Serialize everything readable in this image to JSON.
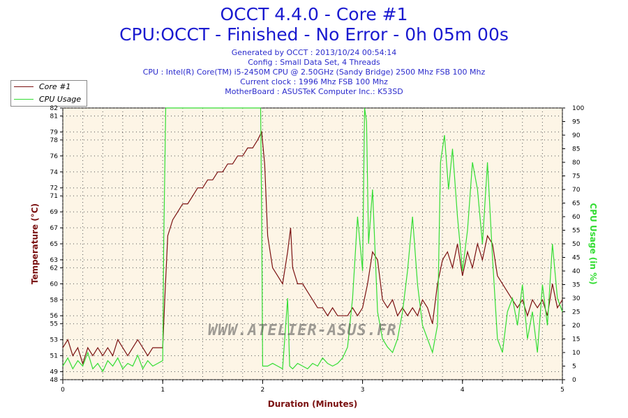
{
  "header": {
    "title": "OCCT 4.4.0 - Core #1",
    "subtitle": "CPU:OCCT - Finished - No Error - 0h 05m 00s",
    "info": [
      "Generated by OCCT : 2013/10/24 00:54:14",
      "Config : Small Data Set, 4 Threads",
      "CPU : Intel(R) Core(TM) i5-2450M CPU @ 2.50GHz (Sandy Bridge) 2500 Mhz FSB 100 Mhz",
      "Current clock : 1996 Mhz FSB 100 Mhz",
      "MotherBoard : ASUSTeK Computer Inc.: K53SD"
    ]
  },
  "watermark": "WWW.ATELIER-ASUS.FR",
  "colors": {
    "temperature": "#7a1010",
    "cpu_usage": "#33dd33",
    "plot_bg": "#fdf5e6",
    "title": "#1a1ad0"
  },
  "chart_data": {
    "type": "line",
    "xlabel": "Duration (Minutes)",
    "ylabel": "Temperature (°C)",
    "y2label": "CPU Usage (in %)",
    "xlim": [
      0,
      5
    ],
    "ylim": [
      48,
      82
    ],
    "y2lim": [
      0,
      100
    ],
    "x_ticks": [
      "0",
      "1",
      "2",
      "3",
      "4",
      "5"
    ],
    "y_ticks": [
      48,
      49,
      51,
      53,
      55,
      56,
      58,
      60,
      62,
      63,
      65,
      67,
      69,
      71,
      72,
      74,
      76,
      78,
      79,
      81,
      82
    ],
    "y2_ticks": [
      0,
      5,
      10,
      15,
      20,
      25,
      30,
      35,
      40,
      45,
      50,
      55,
      60,
      65,
      70,
      75,
      80,
      85,
      90,
      95,
      100
    ],
    "grid": "dotted",
    "legend": "top-left",
    "series": [
      {
        "name": "Core #1",
        "axis": "left",
        "x": [
          0,
          0.05,
          0.1,
          0.15,
          0.2,
          0.25,
          0.3,
          0.35,
          0.4,
          0.45,
          0.5,
          0.55,
          0.6,
          0.65,
          0.7,
          0.75,
          0.8,
          0.85,
          0.9,
          0.95,
          1.0,
          1.02,
          1.05,
          1.1,
          1.15,
          1.2,
          1.25,
          1.3,
          1.35,
          1.4,
          1.45,
          1.5,
          1.55,
          1.6,
          1.65,
          1.7,
          1.75,
          1.8,
          1.85,
          1.9,
          1.95,
          1.99,
          2.02,
          2.05,
          2.1,
          2.15,
          2.2,
          2.25,
          2.28,
          2.3,
          2.35,
          2.4,
          2.45,
          2.5,
          2.55,
          2.6,
          2.65,
          2.7,
          2.75,
          2.8,
          2.85,
          2.9,
          2.95,
          3.0,
          3.05,
          3.1,
          3.15,
          3.2,
          3.25,
          3.3,
          3.35,
          3.4,
          3.45,
          3.5,
          3.55,
          3.6,
          3.65,
          3.7,
          3.75,
          3.8,
          3.85,
          3.9,
          3.95,
          4.0,
          4.05,
          4.1,
          4.15,
          4.2,
          4.25,
          4.3,
          4.35,
          4.4,
          4.45,
          4.5,
          4.55,
          4.6,
          4.65,
          4.7,
          4.75,
          4.8,
          4.85,
          4.9,
          4.95,
          5.0
        ],
        "y": [
          52,
          53,
          51,
          52,
          50,
          52,
          51,
          52,
          51,
          52,
          51,
          53,
          52,
          51,
          52,
          53,
          52,
          51,
          52,
          52,
          52,
          58,
          66,
          68,
          69,
          70,
          70,
          71,
          72,
          72,
          73,
          73,
          74,
          74,
          75,
          75,
          76,
          76,
          77,
          77,
          78,
          79,
          75,
          66,
          62,
          61,
          60,
          64,
          67,
          62,
          60,
          60,
          59,
          58,
          57,
          57,
          56,
          57,
          56,
          56,
          56,
          57,
          56,
          57,
          60,
          64,
          63,
          58,
          57,
          58,
          56,
          57,
          56,
          57,
          56,
          58,
          57,
          55,
          60,
          63,
          64,
          62,
          65,
          61,
          64,
          62,
          65,
          63,
          66,
          65,
          61,
          60,
          59,
          58,
          57,
          58,
          56,
          58,
          57,
          58,
          56,
          60,
          57,
          58
        ]
      },
      {
        "name": "CPU Usage",
        "axis": "right",
        "x": [
          0,
          0.05,
          0.1,
          0.15,
          0.2,
          0.25,
          0.3,
          0.35,
          0.4,
          0.45,
          0.5,
          0.55,
          0.6,
          0.65,
          0.7,
          0.75,
          0.8,
          0.85,
          0.9,
          0.95,
          1.0,
          1.01,
          1.03,
          1.05,
          1.1,
          1.2,
          1.3,
          1.4,
          1.5,
          1.6,
          1.7,
          1.8,
          1.9,
          1.98,
          1.99,
          2.0,
          2.05,
          2.1,
          2.15,
          2.2,
          2.25,
          2.27,
          2.3,
          2.35,
          2.4,
          2.45,
          2.5,
          2.55,
          2.6,
          2.65,
          2.7,
          2.75,
          2.8,
          2.85,
          2.9,
          2.95,
          3.0,
          3.02,
          3.04,
          3.06,
          3.1,
          3.15,
          3.2,
          3.25,
          3.3,
          3.35,
          3.4,
          3.45,
          3.5,
          3.55,
          3.6,
          3.65,
          3.7,
          3.75,
          3.78,
          3.82,
          3.86,
          3.9,
          3.95,
          4.0,
          4.05,
          4.1,
          4.15,
          4.2,
          4.25,
          4.3,
          4.35,
          4.4,
          4.45,
          4.5,
          4.55,
          4.6,
          4.65,
          4.7,
          4.75,
          4.8,
          4.85,
          4.9,
          4.95,
          5.0
        ],
        "y": [
          5,
          8,
          4,
          7,
          5,
          10,
          4,
          6,
          3,
          7,
          5,
          8,
          4,
          6,
          5,
          9,
          4,
          7,
          5,
          6,
          7,
          50,
          100,
          100,
          100,
          100,
          100,
          100,
          100,
          100,
          100,
          100,
          100,
          100,
          60,
          5,
          5,
          6,
          5,
          4,
          30,
          5,
          4,
          6,
          5,
          4,
          6,
          5,
          8,
          6,
          5,
          6,
          8,
          12,
          30,
          60,
          40,
          100,
          95,
          50,
          70,
          25,
          15,
          12,
          10,
          15,
          25,
          40,
          60,
          35,
          20,
          15,
          10,
          20,
          80,
          90,
          70,
          85,
          60,
          40,
          55,
          80,
          70,
          50,
          80,
          45,
          15,
          10,
          25,
          30,
          20,
          35,
          15,
          25,
          10,
          35,
          20,
          50,
          30,
          25
        ]
      }
    ]
  }
}
